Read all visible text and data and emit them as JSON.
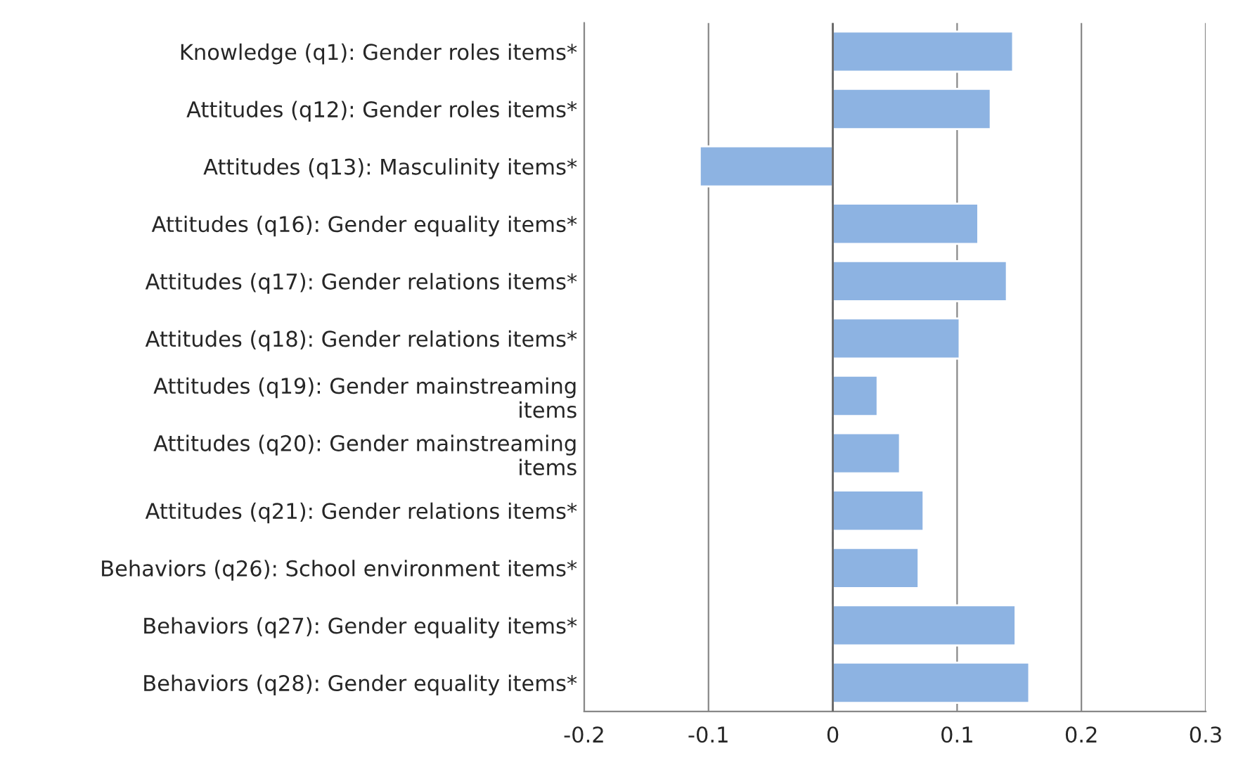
{
  "chart_data": {
    "type": "bar",
    "orientation": "horizontal",
    "categories": [
      "Knowledge (q1): Gender roles items*",
      "Attitudes (q12): Gender roles items*",
      "Attitudes (q13): Masculinity items*",
      "Attitudes (q16): Gender equality items*",
      "Attitudes (q17): Gender relations items*",
      "Attitudes (q18): Gender relations items*",
      "Attitudes (q19): Gender mainstreaming\nitems",
      "Attitudes (q20): Gender mainstreaming\nitems",
      "Attitudes (q21): Gender relations items*",
      "Behaviors (q26): School environment items*",
      "Behaviors (q27): Gender equality items*",
      "Behaviors (q28): Gender equality items*"
    ],
    "values": [
      0.145,
      0.127,
      -0.107,
      0.117,
      0.14,
      0.102,
      0.036,
      0.054,
      0.073,
      0.069,
      0.147,
      0.158
    ],
    "color": "#8db3e2",
    "xlim": [
      -0.2,
      0.3
    ],
    "xticks": [
      -0.2,
      -0.1,
      0,
      0.1,
      0.2,
      0.3
    ],
    "grid": "x"
  }
}
